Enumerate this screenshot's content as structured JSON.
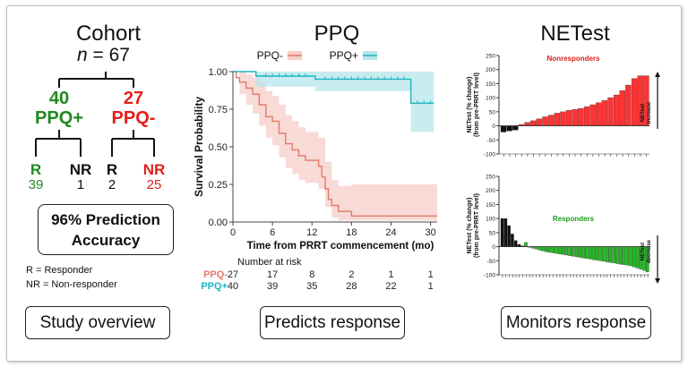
{
  "cohort": {
    "title": "Cohort",
    "n_label_var": "n",
    "n_label_rest": " = 67",
    "ppq_pos": {
      "count": "40",
      "label": "PPQ+",
      "color": "#1e8a1e"
    },
    "ppq_neg": {
      "count": "27",
      "label": "PPQ-",
      "color": "#e0201b"
    },
    "leaves": [
      {
        "label": "R",
        "value": "39",
        "color": "#1e8a1e",
        "value_color": "#1e8a1e"
      },
      {
        "label": "NR",
        "value": "1",
        "color": "#111111",
        "value_color": "#111111"
      },
      {
        "label": "R",
        "value": "2",
        "color": "#111111",
        "value_color": "#111111"
      },
      {
        "label": "NR",
        "value": "25",
        "color": "#e0201b",
        "value_color": "#e0201b"
      }
    ],
    "accuracy_line1": "96% Prediction",
    "accuracy_line2": "Accuracy",
    "legend_r": "R = Responder",
    "legend_nr": "NR = Non-responder",
    "button": "Study overview"
  },
  "ppq": {
    "title": "PPQ",
    "button": "Predicts response",
    "risk_title": "Number at risk"
  },
  "netest": {
    "title": "NETest",
    "button": "Monitors response",
    "top_label": "Nonresponders",
    "bottom_label": "Responders",
    "top_arrow_label": "NETest increase",
    "bottom_arrow_label": "NETest decrease"
  },
  "chart_data": [
    {
      "type": "line",
      "chart": "kaplan-meier",
      "xlabel": "Time from PRRT commencement (mo)",
      "ylabel": "Survival Probability",
      "xlim": [
        0,
        31
      ],
      "ylim": [
        0,
        1.0
      ],
      "x_ticks": [
        0,
        6,
        12,
        18,
        24,
        30
      ],
      "y_ticks": [
        "0.00",
        "0.25",
        "0.50",
        "0.75",
        "1.00"
      ],
      "legend": "top",
      "series": [
        {
          "name": "PPQ-",
          "color": "#e07a6a",
          "ci_color": "#f6cdc8",
          "steps": [
            [
              0,
              1.0
            ],
            [
              0.5,
              0.96
            ],
            [
              1,
              0.93
            ],
            [
              2,
              0.89
            ],
            [
              3,
              0.85
            ],
            [
              4,
              0.78
            ],
            [
              5,
              0.7
            ],
            [
              6,
              0.67
            ],
            [
              7,
              0.59
            ],
            [
              8,
              0.52
            ],
            [
              9,
              0.48
            ],
            [
              10,
              0.44
            ],
            [
              11,
              0.41
            ],
            [
              12,
              0.41
            ],
            [
              13,
              0.37
            ],
            [
              13.5,
              0.3
            ],
            [
              14,
              0.22
            ],
            [
              14.5,
              0.15
            ],
            [
              15,
              0.11
            ],
            [
              16,
              0.07
            ],
            [
              17,
              0.07
            ],
            [
              18,
              0.04
            ],
            [
              31,
              0.04
            ]
          ],
          "ci_upper": [
            [
              0,
              1.0
            ],
            [
              1,
              1.0
            ],
            [
              2,
              0.98
            ],
            [
              3,
              0.96
            ],
            [
              4,
              0.93
            ],
            [
              5,
              0.87
            ],
            [
              6,
              0.84
            ],
            [
              7,
              0.78
            ],
            [
              8,
              0.71
            ],
            [
              9,
              0.67
            ],
            [
              10,
              0.63
            ],
            [
              11,
              0.6
            ],
            [
              12,
              0.6
            ],
            [
              13,
              0.56
            ],
            [
              14,
              0.4
            ],
            [
              15,
              0.28
            ],
            [
              16,
              0.24
            ],
            [
              18,
              0.25
            ],
            [
              31,
              0.27
            ]
          ],
          "ci_lower": [
            [
              0,
              1.0
            ],
            [
              1,
              0.85
            ],
            [
              2,
              0.78
            ],
            [
              3,
              0.72
            ],
            [
              4,
              0.64
            ],
            [
              5,
              0.56
            ],
            [
              6,
              0.51
            ],
            [
              7,
              0.43
            ],
            [
              8,
              0.36
            ],
            [
              9,
              0.32
            ],
            [
              10,
              0.28
            ],
            [
              11,
              0.26
            ],
            [
              12,
              0.26
            ],
            [
              13,
              0.22
            ],
            [
              14,
              0.1
            ],
            [
              15,
              0.03
            ],
            [
              16,
              0.01
            ],
            [
              31,
              0.0
            ]
          ],
          "at_risk": [
            27,
            17,
            8,
            2,
            1,
            1
          ]
        },
        {
          "name": "PPQ+",
          "color": "#1fb5bf",
          "ci_color": "#b5e6ea",
          "steps": [
            [
              0,
              1.0
            ],
            [
              3,
              1.0
            ],
            [
              3.5,
              0.97
            ],
            [
              12,
              0.97
            ],
            [
              12.5,
              0.95
            ],
            [
              26.5,
              0.95
            ],
            [
              27,
              0.79
            ],
            [
              30.5,
              0.79
            ]
          ],
          "ci_upper": [
            [
              0,
              1.0
            ],
            [
              30.5,
              1.0
            ]
          ],
          "ci_lower": [
            [
              0,
              1.0
            ],
            [
              3,
              1.0
            ],
            [
              3.5,
              0.9
            ],
            [
              12,
              0.9
            ],
            [
              12.5,
              0.87
            ],
            [
              26.5,
              0.87
            ],
            [
              27,
              0.6
            ],
            [
              30.5,
              0.6
            ]
          ],
          "censor_x": [
            5,
            6,
            7,
            8,
            9,
            10,
            11,
            14,
            15,
            16,
            17,
            18,
            19,
            20,
            21,
            22,
            23,
            24,
            25,
            26,
            28,
            29,
            30
          ],
          "at_risk": [
            40,
            39,
            35,
            28,
            22,
            1
          ]
        }
      ]
    },
    {
      "type": "bar",
      "title": "Nonresponders",
      "ylabel": "NETest (% change) (from pre-PRRT level)",
      "ylim": [
        -100,
        250
      ],
      "y_ticks": [
        -100,
        -50,
        0,
        50,
        100,
        150,
        200,
        250
      ],
      "values": [
        -22,
        -18,
        -15,
        5,
        12,
        18,
        25,
        32,
        38,
        45,
        50,
        55,
        58,
        62,
        68,
        75,
        82,
        90,
        100,
        110,
        125,
        145,
        168,
        178,
        178
      ],
      "colors": [
        "#111111",
        "#111111",
        "#111111",
        "#ff3333",
        "#ff3333",
        "#ff3333",
        "#ff3333",
        "#ff3333",
        "#ff3333",
        "#ff3333",
        "#ff3333",
        "#ff3333",
        "#ff3333",
        "#ff3333",
        "#ff3333",
        "#ff3333",
        "#ff3333",
        "#ff3333",
        "#ff3333",
        "#ff3333",
        "#ff3333",
        "#ff3333",
        "#ff3333",
        "#ff3333",
        "#ff3333"
      ]
    },
    {
      "type": "bar",
      "title": "Responders",
      "ylabel": "NETest (% change) (from pre-PRRT level)",
      "ylim": [
        -100,
        250
      ],
      "y_ticks": [
        -100,
        -50,
        0,
        50,
        100,
        150,
        200,
        250
      ],
      "values": [
        100,
        100,
        75,
        45,
        22,
        8,
        3,
        15,
        -2,
        -5,
        -8,
        -12,
        -15,
        -18,
        -20,
        -22,
        -24,
        -26,
        -28,
        -30,
        -32,
        -34,
        -36,
        -38,
        -40,
        -42,
        -44,
        -46,
        -48,
        -50,
        -52,
        -54,
        -56,
        -58,
        -60,
        -62,
        -64,
        -66,
        -68,
        -72,
        -76,
        -80,
        -85,
        -90
      ],
      "colors": [
        "#111111",
        "#111111",
        "#111111",
        "#111111",
        "#111111",
        "#111111",
        "#111111",
        "#22bb22",
        "#22bb22",
        "#22bb22",
        "#22bb22",
        "#22bb22",
        "#22bb22",
        "#22bb22",
        "#22bb22",
        "#22bb22",
        "#22bb22",
        "#22bb22",
        "#22bb22",
        "#22bb22",
        "#22bb22",
        "#22bb22",
        "#22bb22",
        "#22bb22",
        "#22bb22",
        "#22bb22",
        "#22bb22",
        "#22bb22",
        "#22bb22",
        "#22bb22",
        "#22bb22",
        "#22bb22",
        "#22bb22",
        "#22bb22",
        "#22bb22",
        "#22bb22",
        "#22bb22",
        "#22bb22",
        "#22bb22",
        "#22bb22",
        "#22bb22",
        "#22bb22",
        "#22bb22",
        "#22bb22"
      ]
    }
  ]
}
